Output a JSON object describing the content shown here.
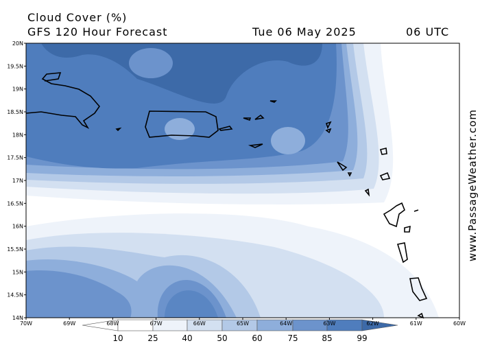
{
  "header": {
    "title": "Cloud Cover (%)",
    "subtitle": "GFS 120 Hour Forecast",
    "date": "Tue 06 May 2025",
    "time": "06 UTC"
  },
  "latitude_labels": [
    "20N",
    "19.5N",
    "19N",
    "18.5N",
    "18N",
    "17.5N",
    "17N",
    "16.5N",
    "16N",
    "15.5N",
    "15N",
    "14.5N",
    "14N"
  ],
  "longitude_labels": [
    "70W",
    "69W",
    "68W",
    "67W",
    "66W",
    "65W",
    "64W",
    "63W",
    "62W",
    "61W",
    "60W"
  ],
  "colorbar": {
    "labels": [
      10,
      25,
      40,
      50,
      60,
      75,
      85,
      99
    ]
  },
  "watermark": "www.PassageWeather.com"
}
